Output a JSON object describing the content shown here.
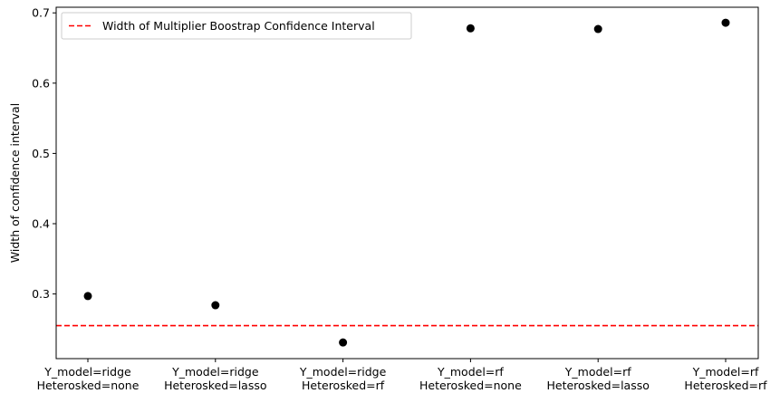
{
  "chart_data": {
    "type": "scatter",
    "title": "",
    "xlabel": "",
    "ylabel": "Width of confidence interval",
    "categories": [
      [
        "Y_model=ridge",
        "Heterosked=none"
      ],
      [
        "Y_model=ridge",
        "Heterosked=lasso"
      ],
      [
        "Y_model=ridge",
        "Heterosked=rf"
      ],
      [
        "Y_model=rf",
        "Heterosked=none"
      ],
      [
        "Y_model=rf",
        "Heterosked=lasso"
      ],
      [
        "Y_model=rf",
        "Heterosked=rf"
      ]
    ],
    "values": [
      0.297,
      0.284,
      0.231,
      0.678,
      0.677,
      0.686
    ],
    "reference_line": {
      "label": "Width of Multiplier Boostrap Confidence Interval",
      "value": 0.255,
      "color": "#ff0000",
      "style": "dashed"
    },
    "point_color": "#000000",
    "ylim": [
      0.208,
      0.708
    ],
    "yticks": [
      0.3,
      0.4,
      0.5,
      0.6,
      0.7
    ],
    "ytick_labels": [
      "0.3",
      "0.4",
      "0.5",
      "0.6",
      "0.7"
    ],
    "grid": false,
    "legend_position": "top-left"
  }
}
